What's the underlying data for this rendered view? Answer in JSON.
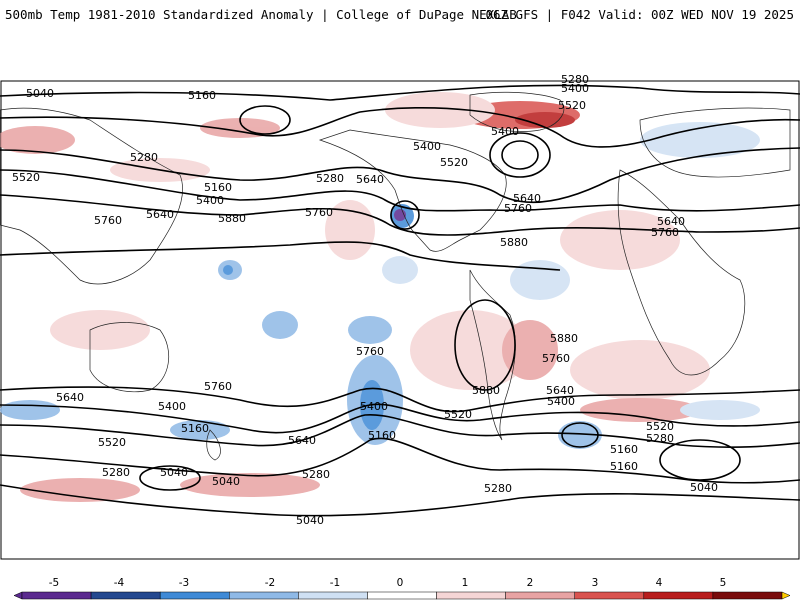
{
  "header": {
    "left_title": "500mb Temp 1981-2010 Standardized Anomaly | College of DuPage NEXLAB",
    "right_title": "06Z GFS | F042 Valid: 00Z WED NOV 19 2025"
  },
  "map": {
    "field": "500mb temperature standardized anomaly",
    "projection": "cylindrical equidistant, global",
    "contour_field": "500mb geopotential height (dam-m)",
    "contour_labels": [
      "5040",
      "5160",
      "5280",
      "5400",
      "5520",
      "5640",
      "5760",
      "5880"
    ]
  },
  "height_labels": [
    {
      "text": "5040",
      "label": "5040"
    },
    {
      "text": "5160",
      "label": "5160"
    },
    {
      "text": "5280",
      "label": "5280"
    },
    {
      "text": "5400",
      "label": "5400"
    },
    {
      "text": "5520",
      "label": "5520"
    },
    {
      "text": "5640",
      "label": "5640"
    },
    {
      "text": "5760",
      "label": "5760"
    },
    {
      "text": "5880",
      "label": "5880"
    }
  ],
  "colorbar": {
    "ticks": [
      "-5",
      "-4",
      "-3",
      "-2",
      "-1",
      "0",
      "1",
      "2",
      "3",
      "4",
      "5"
    ],
    "colors": {
      "neg5": "#5b2a8f",
      "neg4": "#24488f",
      "neg3": "#3f8ad6",
      "neg2": "#8fb9e6",
      "neg1": "#cfe0f3",
      "zero": "#ffffff",
      "pos1": "#f5d5d5",
      "pos2": "#e8a3a3",
      "pos3": "#d9534f",
      "pos4": "#b81d1d",
      "pos5": "#7a0c0c",
      "over": "#ffcc00"
    }
  }
}
